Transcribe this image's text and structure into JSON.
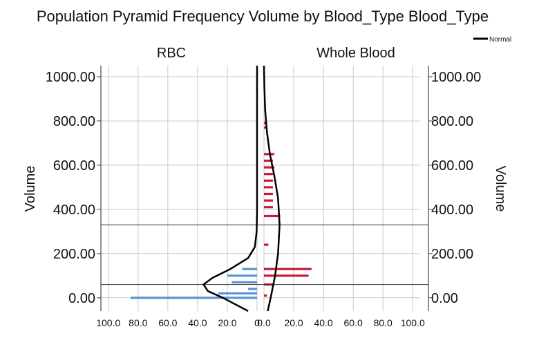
{
  "chart_data": {
    "type": "bar",
    "subtype": "population-pyramid",
    "title": "Population Pyramid Frequency Volume by Blood_Type Blood_Type",
    "panels": [
      {
        "name": "RBC",
        "side": "left",
        "color": "#5b92d2",
        "bins": [
          {
            "y": 0,
            "frequency": 85
          },
          {
            "y": 20,
            "frequency": 26
          },
          {
            "y": 40,
            "frequency": 6
          },
          {
            "y": 70,
            "frequency": 17
          },
          {
            "y": 100,
            "frequency": 20
          },
          {
            "y": 130,
            "frequency": 10
          }
        ],
        "normal_curve": {
          "points": [
            {
              "y": -60,
              "frequency": 6
            },
            {
              "y": 0,
              "frequency": 23
            },
            {
              "y": 30,
              "frequency": 33
            },
            {
              "y": 60,
              "frequency": 36
            },
            {
              "y": 90,
              "frequency": 30
            },
            {
              "y": 130,
              "frequency": 18
            },
            {
              "y": 180,
              "frequency": 6
            },
            {
              "y": 230,
              "frequency": 1.5
            },
            {
              "y": 300,
              "frequency": 0.3
            },
            {
              "y": 400,
              "frequency": 0
            },
            {
              "y": 1050,
              "frequency": 0
            }
          ]
        },
        "mean_line": 60
      },
      {
        "name": "Whole Blood",
        "side": "right",
        "color": "#c8193c",
        "bins": [
          {
            "y": 10,
            "frequency": 2
          },
          {
            "y": 60,
            "frequency": 7
          },
          {
            "y": 100,
            "frequency": 30
          },
          {
            "y": 130,
            "frequency": 32
          },
          {
            "y": 240,
            "frequency": 3
          },
          {
            "y": 370,
            "frequency": 11
          },
          {
            "y": 410,
            "frequency": 6
          },
          {
            "y": 440,
            "frequency": 6
          },
          {
            "y": 470,
            "frequency": 6
          },
          {
            "y": 500,
            "frequency": 6
          },
          {
            "y": 530,
            "frequency": 6
          },
          {
            "y": 560,
            "frequency": 6
          },
          {
            "y": 590,
            "frequency": 7
          },
          {
            "y": 620,
            "frequency": 6
          },
          {
            "y": 650,
            "frequency": 7
          },
          {
            "y": 770,
            "frequency": 2
          },
          {
            "y": 790,
            "frequency": 2
          }
        ],
        "normal_curve": {
          "points": [
            {
              "y": -60,
              "frequency": 2.5
            },
            {
              "y": 0,
              "frequency": 4.5
            },
            {
              "y": 100,
              "frequency": 7.5
            },
            {
              "y": 200,
              "frequency": 9.5
            },
            {
              "y": 330,
              "frequency": 10.5
            },
            {
              "y": 450,
              "frequency": 9.5
            },
            {
              "y": 550,
              "frequency": 7
            },
            {
              "y": 650,
              "frequency": 4
            },
            {
              "y": 750,
              "frequency": 2
            },
            {
              "y": 850,
              "frequency": 0.8
            },
            {
              "y": 950,
              "frequency": 0.3
            },
            {
              "y": 1050,
              "frequency": 0
            }
          ]
        },
        "mean_line": 330
      }
    ],
    "ylabel": "Volume",
    "ylim": [
      -60,
      1050
    ],
    "yticks": [
      {
        "value": 0,
        "label": "0.00"
      },
      {
        "value": 200,
        "label": "200.00"
      },
      {
        "value": 400,
        "label": "400.00"
      },
      {
        "value": 600,
        "label": "600.00"
      },
      {
        "value": 800,
        "label": "800.00"
      },
      {
        "value": 1000,
        "label": "1000.00"
      }
    ],
    "xlim": [
      0,
      105
    ],
    "xticks_left": [
      {
        "value": 100,
        "label": "100.0"
      },
      {
        "value": 80,
        "label": "80.0"
      },
      {
        "value": 60,
        "label": "60.0"
      },
      {
        "value": 40,
        "label": "40.0"
      },
      {
        "value": 20,
        "label": "20.0"
      },
      {
        "value": 0,
        "label": "0"
      }
    ],
    "xticks_right": [
      {
        "value": 0,
        "label": "0.0"
      },
      {
        "value": 20,
        "label": "20.0"
      },
      {
        "value": 40,
        "label": "40.0"
      },
      {
        "value": 60,
        "label": "60.0"
      },
      {
        "value": 80,
        "label": "80.0"
      },
      {
        "value": 100,
        "label": "100.0"
      }
    ],
    "legend": {
      "entries": [
        {
          "label": "Normal",
          "color": "#000000"
        }
      ],
      "placement": "top-right"
    },
    "grid": true
  }
}
